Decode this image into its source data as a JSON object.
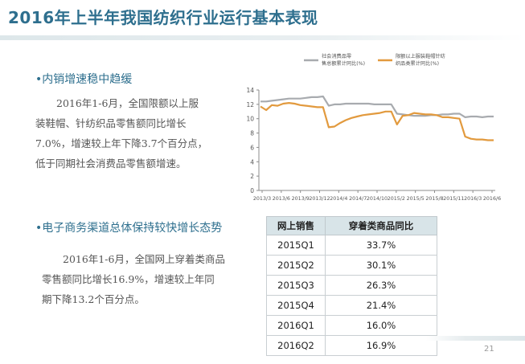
{
  "title": "2016年上半年我国纺织行业运行基本表现",
  "section1": {
    "heading": "•内销增速稳中趋缓",
    "lines": [
      "2016年1-6月，全国限额以上服",
      "装鞋帽、针纺织品零售额同比增长",
      "7.0%，增速较上年下降3.7个百分点，",
      "低于同期社会消费品零售额增速。"
    ]
  },
  "section2": {
    "heading": "•电子商务渠道总体保持较快增长态势",
    "lines": [
      "2016年1-6月，全国网上穿着类商品",
      "零售额同比增长16.9%，增速较上年同",
      "期下降13.2个百分点。"
    ]
  },
  "chart_data": {
    "type": "line",
    "ylim": [
      0,
      14
    ],
    "yticks": [
      "0",
      "2",
      "4",
      "6",
      "8",
      "10",
      "12",
      "14"
    ],
    "xtick_labels": [
      "2013/3",
      "2013/6",
      "2013/9",
      "2013/12",
      "2014/4",
      "2014/7",
      "2014/10",
      "2015/2",
      "2015/5",
      "2015/8",
      "2015/11",
      "2016/3",
      "2016/6"
    ],
    "grid": false,
    "legend_position": "top",
    "series": [
      {
        "name": "社会消费品零售总额累计同比(%)",
        "color": "#a8abaf",
        "values": [
          12.4,
          12.4,
          12.5,
          12.6,
          12.7,
          12.8,
          12.8,
          12.8,
          12.9,
          13.0,
          13.0,
          13.1,
          11.8,
          12.0,
          12.0,
          12.1,
          12.1,
          12.1,
          12.1,
          12.1,
          12.0,
          12.0,
          12.0,
          12.0,
          10.7,
          10.6,
          10.5,
          10.4,
          10.4,
          10.4,
          10.5,
          10.5,
          10.6,
          10.6,
          10.7,
          10.7,
          10.2,
          10.3,
          10.3,
          10.2,
          10.3,
          10.3
        ]
      },
      {
        "name": "限额以上服装鞋帽针纺织品类累计同比(%)",
        "color": "#e29a3e",
        "values": [
          11.7,
          11.2,
          11.9,
          11.8,
          12.1,
          12.2,
          12.1,
          11.9,
          11.8,
          11.7,
          11.6,
          11.6,
          8.8,
          8.9,
          9.4,
          9.8,
          10.1,
          10.3,
          10.5,
          10.6,
          10.7,
          10.8,
          11.0,
          11.0,
          9.2,
          10.4,
          10.5,
          10.8,
          10.7,
          10.6,
          10.6,
          10.5,
          10.2,
          10.2,
          10.1,
          10.0,
          7.5,
          7.2,
          7.1,
          7.1,
          7.0,
          7.0
        ]
      }
    ]
  },
  "table": {
    "headers": [
      "网上销售",
      "穿着类商品同比"
    ],
    "rows": [
      [
        "2015Q1",
        "33.7%"
      ],
      [
        "2015Q2",
        "30.1%"
      ],
      [
        "2015Q3",
        "26.3%"
      ],
      [
        "2015Q4",
        "21.4%"
      ],
      [
        "2016Q1",
        "16.0%"
      ],
      [
        "2016Q2",
        "16.9%"
      ]
    ]
  },
  "page_number": "21"
}
